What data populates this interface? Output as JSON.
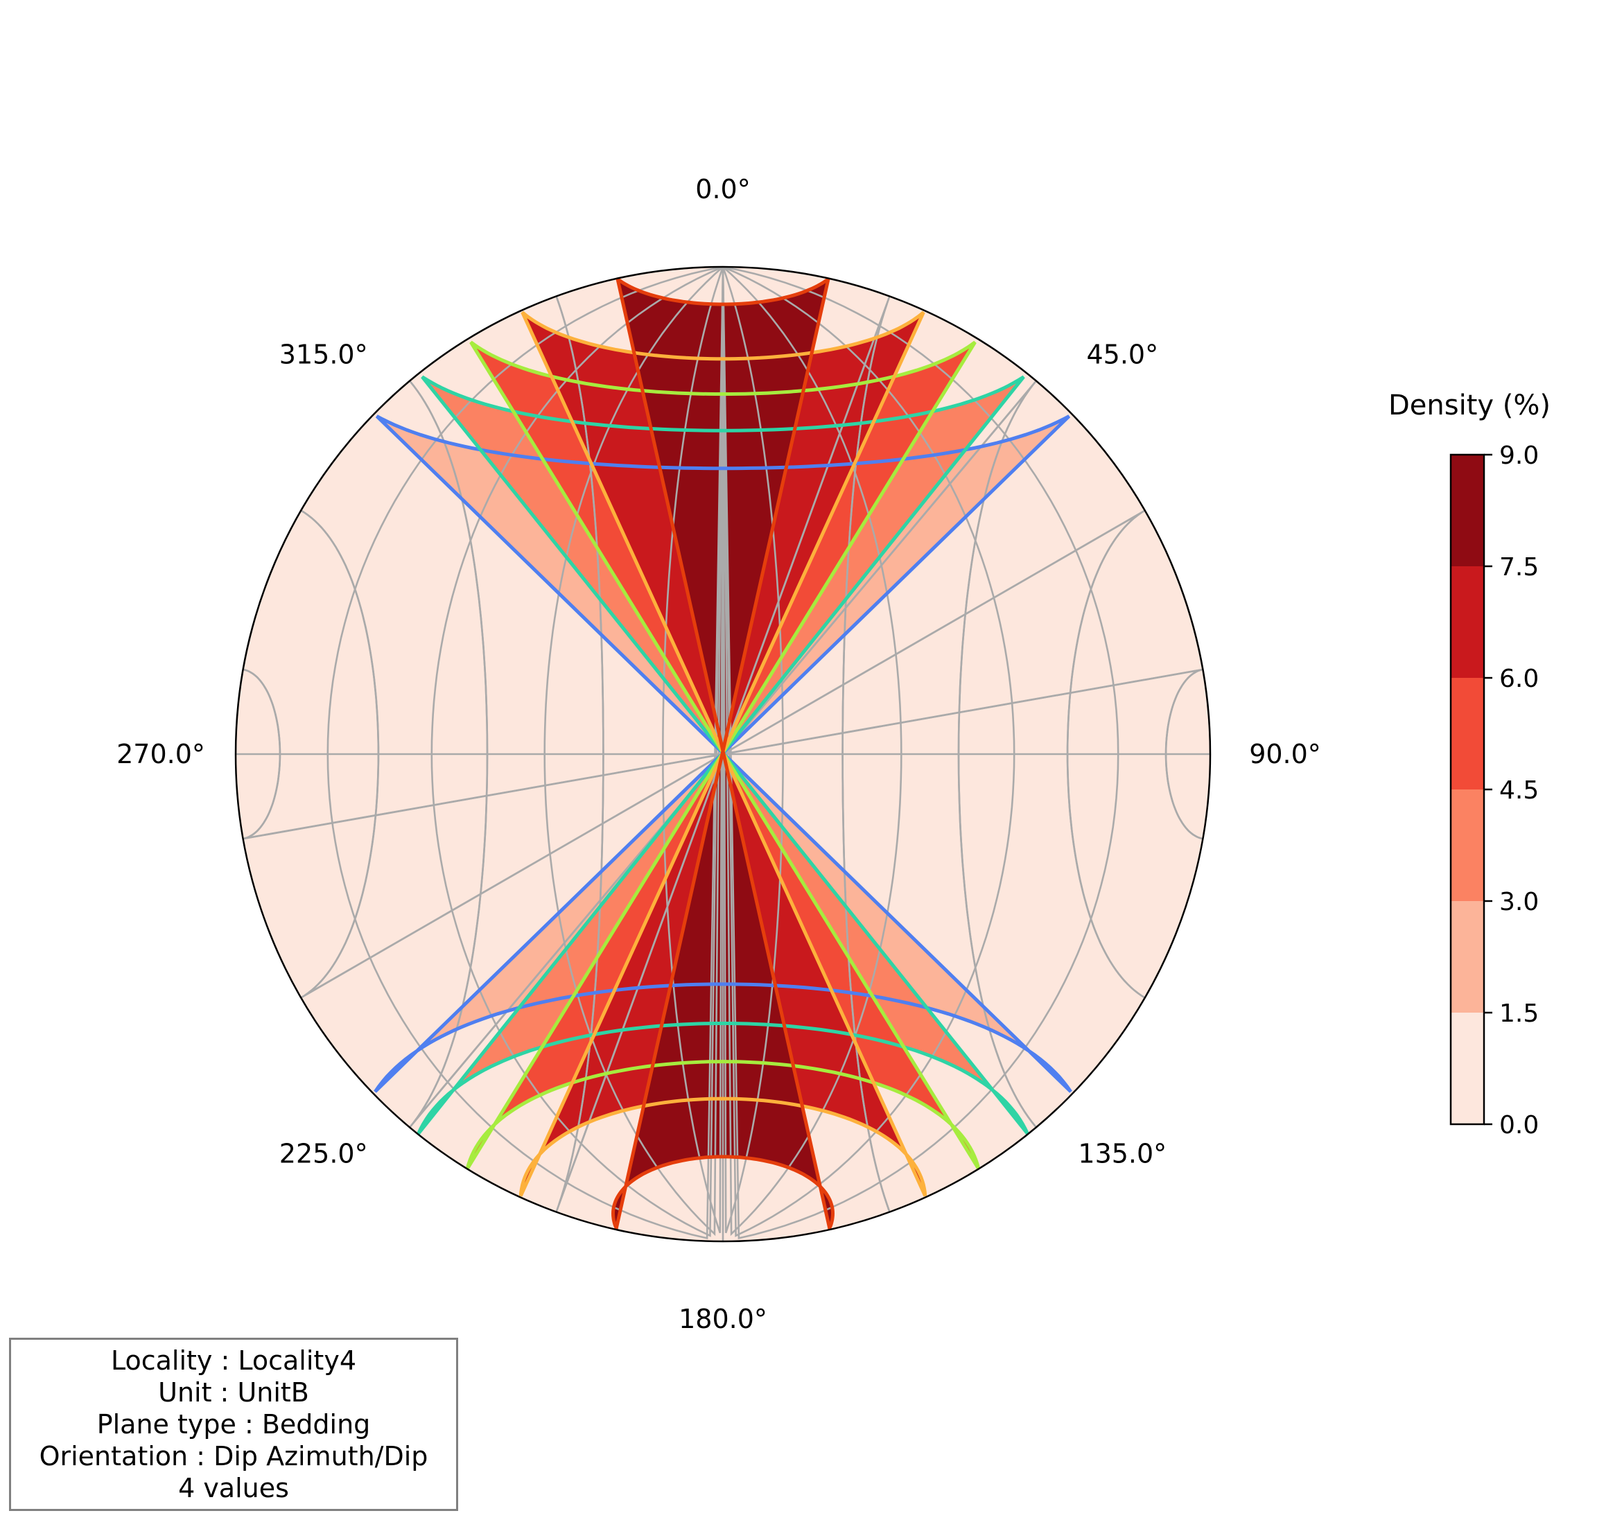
{
  "chart_data": {
    "type": "stereonet-density",
    "projection": "equal-area lower hemisphere",
    "azimuth_labels": [
      "0.0°",
      "45.0°",
      "90.0°",
      "135.0°",
      "180.0°",
      "225.0°",
      "270.0°",
      "315.0°"
    ],
    "grid": true,
    "density_levels": [
      0.0,
      1.5,
      3.0,
      4.5,
      6.0,
      7.5,
      9.0
    ],
    "density_colors": [
      "#fde7dd",
      "#fcb499",
      "#fb8262",
      "#f24b37",
      "#c9191d",
      "#8f0b13"
    ],
    "center": {
      "azimuth": 180,
      "dip": 5
    },
    "contour_rings": [
      {
        "level": 1.5,
        "radius_deg": 46,
        "color": "#4f7ff0"
      },
      {
        "level": 3.0,
        "radius_deg": 39,
        "color": "#2ed4a5"
      },
      {
        "level": 4.5,
        "radius_deg": 32,
        "color": "#a6ec3e"
      },
      {
        "level": 6.0,
        "radius_deg": 25,
        "color": "#fdb13c"
      },
      {
        "level": 7.5,
        "radius_deg": 13.5,
        "color": "#e53e0c"
      }
    ],
    "colorbar": {
      "label": "Density (%)",
      "ticks": [
        "0.0",
        "1.5",
        "3.0",
        "4.5",
        "6.0",
        "7.5",
        "9.0"
      ]
    }
  },
  "info_box": {
    "lines": [
      "Locality : Locality4",
      "Unit : UnitB",
      "Plane type : Bedding",
      "Orientation : Dip Azimuth/Dip",
      "4 values"
    ]
  }
}
